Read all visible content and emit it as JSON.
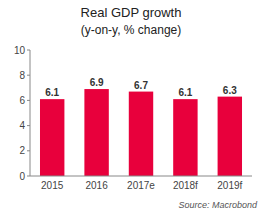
{
  "chart_data": {
    "type": "bar",
    "title": "Real GDP growth",
    "subtitle": "(y-on-y, % change)",
    "categories": [
      "2015",
      "2016",
      "2017e",
      "2018f",
      "2019f"
    ],
    "values": [
      6.1,
      6.9,
      6.7,
      6.1,
      6.3
    ],
    "color": "#e8003c",
    "ylim": [
      0,
      10
    ],
    "yticks": [
      0,
      2,
      4,
      6,
      8,
      10
    ],
    "grid": false,
    "data_labels": true,
    "annotations": [
      "Source: Macrobond"
    ]
  }
}
